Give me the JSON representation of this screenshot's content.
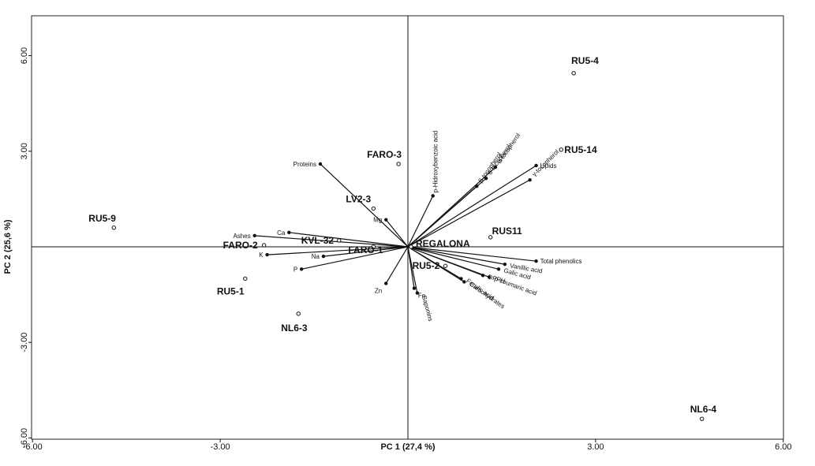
{
  "chart_data": {
    "type": "scatter",
    "subtype": "pca-biplot",
    "xlabel": "PC 1 (27,4 %)",
    "ylabel": "PC 2 (25,6 %)",
    "xlim": [
      -6,
      6
    ],
    "ylim": [
      -6,
      6
    ],
    "x_ticks": [
      "-6.00",
      "-3.00",
      "3.00",
      "6.00"
    ],
    "y_ticks": [
      "6.00",
      "3.00",
      "-3.00",
      "-6.00"
    ],
    "tick_values": [
      -6,
      -3,
      3,
      6
    ],
    "grid": false,
    "samples": [
      {
        "name": "RU5-4",
        "x": 2.65,
        "y": 5.45
      },
      {
        "name": "RU5-14",
        "x": 2.45,
        "y": 3.05
      },
      {
        "name": "FARO-3",
        "x": -0.15,
        "y": 2.6
      },
      {
        "name": "LV2-3",
        "x": -0.55,
        "y": 1.2
      },
      {
        "name": "RU5-9",
        "x": -4.7,
        "y": 0.6
      },
      {
        "name": "KVL-32",
        "x": -1.1,
        "y": 0.2
      },
      {
        "name": "FARO-2",
        "x": -2.3,
        "y": 0.05
      },
      {
        "name": "FARO-1",
        "x": -0.55,
        "y": 0.0
      },
      {
        "name": "REGALONA",
        "x": 0.05,
        "y": 0.0
      },
      {
        "name": "RUS11",
        "x": 1.32,
        "y": 0.3
      },
      {
        "name": "RU5-2",
        "x": 0.6,
        "y": -0.6
      },
      {
        "name": "RU5-1",
        "x": -2.6,
        "y": -1.0
      },
      {
        "name": "NL6-3",
        "x": -1.75,
        "y": -2.1
      },
      {
        "name": "NL6-4",
        "x": 4.7,
        "y": -5.4
      }
    ],
    "loadings": [
      {
        "name": "Proteins",
        "x": -1.4,
        "y": 2.6
      },
      {
        "name": "p-Hidroxybenzoic acid",
        "x": 0.4,
        "y": 1.6
      },
      {
        "name": "β-tocopherol",
        "x": 1.1,
        "y": 1.9
      },
      {
        "name": "α-tocopherol",
        "x": 1.4,
        "y": 2.5
      },
      {
        "name": "δ-tocopherol",
        "x": 1.25,
        "y": 2.15
      },
      {
        "name": "γ-tocopherol",
        "x": 1.95,
        "y": 2.1
      },
      {
        "name": "Lipids",
        "x": 2.05,
        "y": 2.55
      },
      {
        "name": "Mg",
        "x": -0.35,
        "y": 0.85
      },
      {
        "name": "Ca",
        "x": -1.9,
        "y": 0.45
      },
      {
        "name": "Ashes",
        "x": -2.45,
        "y": 0.35
      },
      {
        "name": "K",
        "x": -2.25,
        "y": -0.25
      },
      {
        "name": "Na",
        "x": -1.35,
        "y": -0.3
      },
      {
        "name": "P",
        "x": -1.7,
        "y": -0.7
      },
      {
        "name": "Zn",
        "x": -0.35,
        "y": -1.15
      },
      {
        "name": "Fe",
        "x": 0.1,
        "y": -1.3
      },
      {
        "name": "Saponins",
        "x": 0.15,
        "y": -1.45
      },
      {
        "name": "Ferulic acid",
        "x": 0.85,
        "y": -1.0
      },
      {
        "name": "Carbohydrates",
        "x": 0.9,
        "y": -1.1
      },
      {
        "name": "Total phenolics",
        "x": 2.05,
        "y": -0.45
      },
      {
        "name": "Vanillic acid",
        "x": 1.55,
        "y": -0.55
      },
      {
        "name": "Galic acid",
        "x": 1.45,
        "y": -0.7
      },
      {
        "name": "DPPH",
        "x": 1.2,
        "y": -0.9
      },
      {
        "name": "p-coumaric acid",
        "x": 1.3,
        "y": -0.95
      }
    ]
  }
}
